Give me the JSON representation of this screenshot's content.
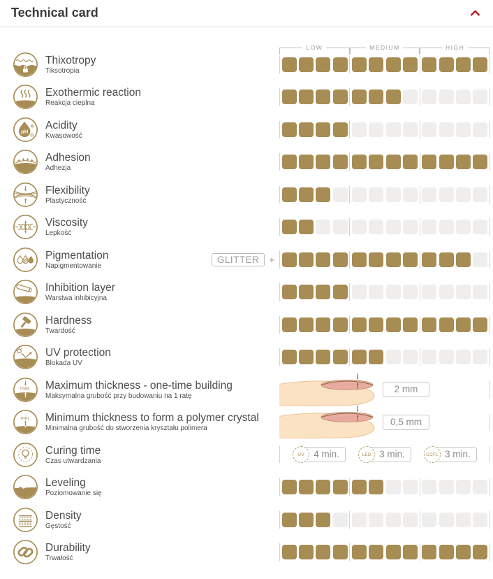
{
  "header": {
    "title": "Technical card",
    "collapse_icon": "chevron-up"
  },
  "scale_labels": [
    "LOW",
    "MEDIUM",
    "HIGH"
  ],
  "colors": {
    "accent_gold": "#a78c54",
    "empty_cell": "#f0eeec",
    "divider": "#d2d2d2",
    "header_red": "#b01e24",
    "value_text": "#8c8c8c"
  },
  "rating_scale": {
    "max_segments": 12,
    "groups": 3
  },
  "rows": [
    {
      "icon": "thixotropy",
      "label": "Thixotropy",
      "subtitle": "Tiksotropia",
      "rating": 12
    },
    {
      "icon": "exothermic-reaction",
      "label": "Exothermic reaction",
      "subtitle": "Reakcja cieplna",
      "rating": 7
    },
    {
      "icon": "acidity",
      "label": "Acidity",
      "subtitle": "Kwasowość",
      "rating": 4
    },
    {
      "icon": "adhesion",
      "label": "Adhesion",
      "subtitle": "Adhezja",
      "rating": 12
    },
    {
      "icon": "flexibility",
      "label": "Flexibility",
      "subtitle": "Plastyczność",
      "rating": 3
    },
    {
      "icon": "viscosity",
      "label": "Viscosity",
      "subtitle": "Lepkość",
      "rating": 2
    },
    {
      "icon": "pigmentation",
      "label": "Pigmentation",
      "subtitle": "Napigmentowanie",
      "rating": 11,
      "badge": "GLITTER",
      "plus": "+"
    },
    {
      "icon": "inhibition-layer",
      "label": "Inhibition layer",
      "subtitle": "Warstwa inhibicyjna",
      "rating": 4
    },
    {
      "icon": "hardness",
      "label": "Hardness",
      "subtitle": "Twardość",
      "rating": 12
    },
    {
      "icon": "uv-protection",
      "label": "UV protection",
      "subtitle": "Blokada UV",
      "rating": 6
    },
    {
      "icon": "max-thickness",
      "label": "Maximum thickness - one-time building",
      "subtitle": "Maksymalna grubość przy budowaniu na 1 ratę",
      "value": "2 mm"
    },
    {
      "icon": "min-thickness",
      "label": "Minimum thickness to form a polymer crystal",
      "subtitle": "Minimalna grubość do stworzenia kryształu polimera",
      "value": "0,5 mm"
    },
    {
      "icon": "curing-time",
      "label": "Curing time",
      "subtitle": "Czas utwardzania",
      "times": [
        {
          "unit": "UV",
          "value": "4 min."
        },
        {
          "unit": "LED",
          "value": "3 min."
        },
        {
          "unit": "CCFL",
          "value": "3 min."
        }
      ]
    },
    {
      "icon": "leveling",
      "label": "Leveling",
      "subtitle": "Poziomowanie się",
      "rating": 6
    },
    {
      "icon": "density",
      "label": "Density",
      "subtitle": "Gęstość",
      "rating": 3
    },
    {
      "icon": "durability",
      "label": "Durability",
      "subtitle": "Trwałość",
      "rating": 12
    }
  ],
  "icon_texts": {
    "ph": "pH",
    "max": "max.",
    "min": "min."
  }
}
